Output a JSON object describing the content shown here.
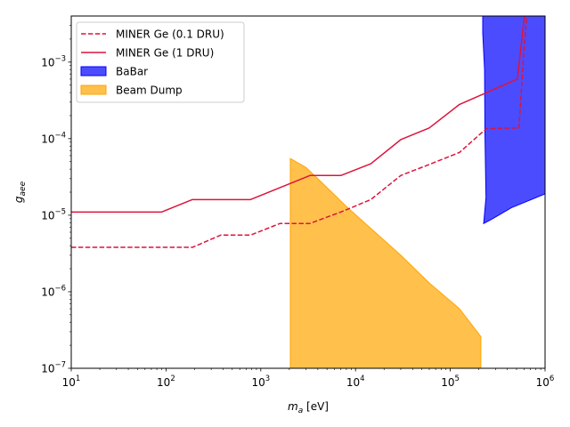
{
  "chart_data": {
    "type": "line",
    "xlabel_main": "m",
    "xlabel_sub": "a",
    "xlabel_unit": " [eV]",
    "ylabel_main": "g",
    "ylabel_sub": "aee",
    "x_scale": "log",
    "y_scale": "log",
    "xlim": [
      10,
      1000000
    ],
    "ylim": [
      1e-07,
      0.004
    ],
    "grid": false,
    "legend_position": "top-left",
    "x_ticks": [
      {
        "value": 10,
        "base": "10",
        "exp": "1"
      },
      {
        "value": 100,
        "base": "10",
        "exp": "2"
      },
      {
        "value": 1000,
        "base": "10",
        "exp": "3"
      },
      {
        "value": 10000,
        "base": "10",
        "exp": "4"
      },
      {
        "value": 100000,
        "base": "10",
        "exp": "5"
      },
      {
        "value": 1000000,
        "base": "10",
        "exp": "6"
      }
    ],
    "y_ticks": [
      {
        "value": 1e-07,
        "base": "10",
        "exp": "−7"
      },
      {
        "value": 1e-06,
        "base": "10",
        "exp": "−6"
      },
      {
        "value": 1e-05,
        "base": "10",
        "exp": "−5"
      },
      {
        "value": 0.0001,
        "base": "10",
        "exp": "−4"
      },
      {
        "value": 0.001,
        "base": "10",
        "exp": "−3"
      }
    ],
    "series": [
      {
        "name": "MINER Ge (0.1 DRU)",
        "kind": "line",
        "style": "dashed",
        "color": "#dc143c",
        "points": [
          [
            10,
            3.8e-06
          ],
          [
            190,
            3.8e-06
          ],
          [
            380,
            5.5e-06
          ],
          [
            780,
            5.5e-06
          ],
          [
            1600,
            7.8e-06
          ],
          [
            3300,
            7.8e-06
          ],
          [
            7000,
            1.1e-05
          ],
          [
            14500,
            1.6e-05
          ],
          [
            30000,
            3.3e-05
          ],
          [
            60000,
            4.6e-05
          ],
          [
            125000,
            6.6e-05
          ],
          [
            240000,
            0.000135
          ],
          [
            530000,
            0.000138
          ],
          [
            600000,
            0.0015
          ],
          [
            650000,
            0.005
          ]
        ]
      },
      {
        "name": "MINER Ge (1 DRU)",
        "kind": "line",
        "style": "solid",
        "color": "#dc143c",
        "points": [
          [
            10,
            1.1e-05
          ],
          [
            90,
            1.1e-05
          ],
          [
            190,
            1.6e-05
          ],
          [
            780,
            1.6e-05
          ],
          [
            3300,
            3.3e-05
          ],
          [
            7000,
            3.3e-05
          ],
          [
            14500,
            4.7e-05
          ],
          [
            30000,
            9.7e-05
          ],
          [
            60000,
            0.000138
          ],
          [
            125000,
            0.00028
          ],
          [
            510000,
            0.0006
          ],
          [
            580000,
            0.0025
          ],
          [
            620000,
            0.005
          ]
        ]
      },
      {
        "name": "BaBar",
        "kind": "area",
        "color": "#0000ff",
        "points": [
          [
            220000,
            0.005
          ],
          [
            220000,
            0.0024
          ],
          [
            230000,
            0.0008
          ],
          [
            232000,
            0.00012
          ],
          [
            238000,
            1.7e-05
          ],
          [
            225000,
            7.8e-06
          ],
          [
            280000,
            9e-06
          ],
          [
            440000,
            1.25e-05
          ],
          [
            1000000,
            1.9e-05
          ],
          [
            1000000,
            0.005
          ]
        ]
      },
      {
        "name": "Beam Dump",
        "kind": "area",
        "color": "#ffa500",
        "points": [
          [
            2050,
            5.5e-05
          ],
          [
            3000,
            4.2e-05
          ],
          [
            4000,
            3e-05
          ],
          [
            8000,
            1.3e-05
          ],
          [
            30000,
            3e-06
          ],
          [
            60000,
            1.3e-06
          ],
          [
            125000,
            6e-07
          ],
          [
            210000,
            2.6e-07
          ],
          [
            210000,
            9e-08
          ],
          [
            2050,
            9e-08
          ]
        ]
      }
    ]
  }
}
